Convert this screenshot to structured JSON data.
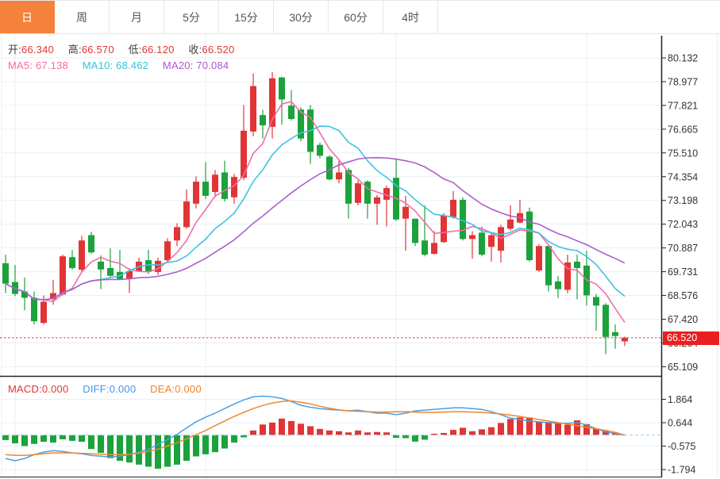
{
  "toolbar": {
    "tabs": [
      {
        "label": "日",
        "active": true
      },
      {
        "label": "周",
        "active": false
      },
      {
        "label": "月",
        "active": false
      },
      {
        "label": "5分",
        "active": false
      },
      {
        "label": "15分",
        "active": false
      },
      {
        "label": "30分",
        "active": false
      },
      {
        "label": "60分",
        "active": false
      },
      {
        "label": "4时",
        "active": false
      }
    ]
  },
  "ohlc": {
    "open_label": "开:",
    "open": "66.340",
    "high_label": "高:",
    "high": "66.570",
    "low_label": "低:",
    "low": "66.120",
    "close_label": "收:",
    "close": "66.520"
  },
  "ma": {
    "ma5_label": "MA5:",
    "ma5": "67.138",
    "ma10_label": "MA10:",
    "ma10": "68.462",
    "ma20_label": "MA20:",
    "ma20": "70.084"
  },
  "macd_row": {
    "macd_label": "MACD:",
    "macd": "0.000",
    "diff_label": "DIFF:",
    "diff": "0.000",
    "dea_label": "DEA:",
    "dea": "0.000"
  },
  "colors": {
    "up": "#e13535",
    "down": "#1ba23a",
    "ma5": "#f06ea6",
    "ma10": "#3fc3e0",
    "ma20": "#ab5fcc",
    "diff_line": "#4d9fe2",
    "dea_line": "#f0872f",
    "accent_tab": "#f5823a",
    "price_line": "#e13535",
    "badge_bg": "#ea1f1f",
    "grid": "#e9eff6",
    "axis": "#222222",
    "zero_dash": "#a9dcf2",
    "tick_text": "#333333"
  },
  "chart_data": {
    "type": "candlestick",
    "title": "",
    "last_price": "66.520",
    "last_price_value": 66.52,
    "main_axis": {
      "tick_labels": [
        "80.132",
        "78.977",
        "77.821",
        "76.665",
        "75.510",
        "74.354",
        "73.198",
        "72.043",
        "70.887",
        "69.731",
        "68.576",
        "67.420",
        "66.264",
        "65.109"
      ],
      "tick_values": [
        80.132,
        78.977,
        77.821,
        76.665,
        75.51,
        74.354,
        73.198,
        72.043,
        70.887,
        69.731,
        68.576,
        67.42,
        66.264,
        65.109
      ],
      "range": [
        65.109,
        80.132
      ]
    },
    "ma_periods": [
      5,
      10,
      20
    ],
    "candles_format": [
      "open",
      "high",
      "low",
      "close"
    ],
    "candles": [
      [
        70.14,
        70.56,
        68.69,
        69.15
      ],
      [
        69.23,
        70.06,
        68.54,
        68.65
      ],
      [
        68.77,
        69.45,
        67.85,
        68.46
      ],
      [
        68.46,
        68.77,
        67.17,
        67.32
      ],
      [
        67.24,
        68.58,
        67.17,
        68.27
      ],
      [
        68.39,
        69.34,
        68.12,
        68.69
      ],
      [
        68.62,
        70.56,
        68.58,
        70.48
      ],
      [
        70.44,
        70.79,
        69.83,
        69.91
      ],
      [
        69.83,
        71.48,
        69.72,
        71.25
      ],
      [
        71.51,
        71.67,
        70.6,
        70.67
      ],
      [
        70.22,
        70.52,
        68.88,
        69.84
      ],
      [
        69.91,
        70.86,
        69.45,
        69.53
      ],
      [
        69.72,
        70.79,
        69.34,
        69.38
      ],
      [
        69.38,
        69.91,
        68.69,
        69.76
      ],
      [
        69.76,
        70.41,
        69.72,
        70.22
      ],
      [
        70.29,
        70.79,
        69.61,
        69.72
      ],
      [
        69.72,
        70.41,
        69.57,
        70.26
      ],
      [
        70.29,
        71.36,
        70.18,
        71.21
      ],
      [
        71.25,
        72.09,
        70.98,
        71.9
      ],
      [
        71.9,
        73.73,
        71.82,
        73.15
      ],
      [
        73.04,
        74.37,
        72.81,
        74.11
      ],
      [
        74.11,
        75.06,
        73.27,
        73.42
      ],
      [
        73.61,
        74.68,
        73.35,
        74.45
      ],
      [
        74.56,
        75.13,
        73.15,
        73.27
      ],
      [
        73.35,
        74.49,
        73.04,
        74.34
      ],
      [
        74.3,
        77.84,
        74.18,
        76.59
      ],
      [
        76.55,
        79.37,
        76.32,
        78.76
      ],
      [
        77.35,
        77.61,
        76.21,
        76.85
      ],
      [
        76.78,
        79.45,
        76.21,
        79.14
      ],
      [
        79.18,
        79.22,
        76.89,
        78.11
      ],
      [
        77.81,
        78.57,
        77.08,
        77.16
      ],
      [
        77.62,
        77.73,
        76.09,
        76.21
      ],
      [
        77.62,
        77.84,
        74.98,
        75.56
      ],
      [
        75.9,
        76.01,
        75.25,
        75.37
      ],
      [
        75.33,
        75.4,
        74.18,
        74.22
      ],
      [
        74.22,
        75.13,
        74.03,
        74.56
      ],
      [
        74.68,
        74.79,
        72.31,
        73.04
      ],
      [
        73.08,
        74.18,
        72.96,
        74.03
      ],
      [
        74.11,
        74.18,
        72.31,
        73.04
      ],
      [
        73.04,
        73.46,
        72.01,
        73.35
      ],
      [
        73.23,
        73.92,
        71.93,
        73.8
      ],
      [
        74.3,
        75.25,
        72.2,
        72.27
      ],
      [
        72.31,
        73.42,
        70.75,
        72.89
      ],
      [
        72.31,
        72.31,
        70.98,
        71.13
      ],
      [
        71.25,
        72.96,
        70.48,
        70.56
      ],
      [
        70.6,
        71.7,
        70.56,
        71.13
      ],
      [
        71.17,
        72.58,
        71.13,
        72.47
      ],
      [
        72.39,
        73.65,
        72.31,
        73.23
      ],
      [
        73.23,
        73.35,
        71.25,
        71.32
      ],
      [
        71.32,
        71.7,
        70.37,
        71.51
      ],
      [
        71.63,
        71.93,
        70.48,
        70.56
      ],
      [
        70.94,
        71.63,
        70.22,
        71.51
      ],
      [
        70.75,
        72.01,
        70.18,
        71.9
      ],
      [
        71.82,
        72.96,
        71.74,
        72.27
      ],
      [
        72.12,
        73.23,
        72.08,
        72.58
      ],
      [
        72.66,
        72.85,
        70.22,
        70.29
      ],
      [
        69.79,
        71.06,
        69.72,
        70.98
      ],
      [
        70.98,
        71.06,
        68.77,
        69.07
      ],
      [
        69.26,
        69.53,
        68.46,
        68.88
      ],
      [
        68.85,
        70.56,
        68.69,
        70.18
      ],
      [
        70.22,
        70.56,
        68.39,
        69.91
      ],
      [
        70.03,
        70.75,
        68.08,
        68.58
      ],
      [
        68.5,
        68.65,
        66.86,
        68.08
      ],
      [
        68.12,
        68.2,
        65.72,
        66.56
      ],
      [
        66.79,
        67.17,
        65.98,
        66.6
      ],
      [
        66.34,
        66.57,
        66.12,
        66.52
      ]
    ],
    "macd": {
      "tick_labels": [
        "1.864",
        "0.644",
        "-0.575",
        "-1.794"
      ],
      "tick_values": [
        1.864,
        0.644,
        -0.575,
        -1.794
      ],
      "hist": [
        -0.26,
        -0.43,
        -0.57,
        -0.46,
        -0.35,
        -0.39,
        -0.22,
        -0.3,
        -0.35,
        -0.73,
        -0.93,
        -1.2,
        -1.34,
        -1.43,
        -1.54,
        -1.65,
        -1.75,
        -1.65,
        -1.54,
        -1.34,
        -1.11,
        -1.0,
        -0.89,
        -0.7,
        -0.39,
        -0.12,
        0.24,
        0.55,
        0.65,
        0.86,
        0.73,
        0.59,
        0.46,
        0.32,
        0.24,
        0.2,
        0.14,
        0.24,
        0.14,
        0.16,
        0.14,
        -0.14,
        -0.16,
        -0.34,
        -0.24,
        0.07,
        0.11,
        0.27,
        0.38,
        0.2,
        0.3,
        0.41,
        0.63,
        0.84,
        0.92,
        0.92,
        0.7,
        0.68,
        0.65,
        0.54,
        0.77,
        0.57,
        0.34,
        0.24,
        0.14,
        0.0
      ],
      "diff": [
        -1.22,
        -1.34,
        -1.22,
        -1.02,
        -0.89,
        -0.81,
        -0.85,
        -0.93,
        -0.97,
        -1.06,
        -1.1,
        -1.14,
        -1.1,
        -1.02,
        -0.89,
        -0.73,
        -0.49,
        -0.24,
        0.04,
        0.37,
        0.69,
        0.93,
        1.14,
        1.38,
        1.62,
        1.83,
        1.99,
        2.03,
        1.99,
        1.91,
        1.75,
        1.55,
        1.45,
        1.38,
        1.33,
        1.3,
        1.26,
        1.3,
        1.22,
        1.14,
        1.14,
        1.06,
        1.14,
        1.26,
        1.3,
        1.34,
        1.38,
        1.42,
        1.42,
        1.38,
        1.34,
        1.22,
        1.06,
        0.89,
        0.81,
        0.73,
        0.69,
        0.65,
        0.61,
        0.61,
        0.65,
        0.53,
        0.33,
        0.16,
        0.08,
        0.0
      ],
      "dea": [
        -1.02,
        -1.06,
        -1.06,
        -1.02,
        -0.97,
        -0.93,
        -0.93,
        -0.93,
        -0.95,
        -0.97,
        -1.0,
        -1.02,
        -1.02,
        -1.0,
        -0.95,
        -0.85,
        -0.73,
        -0.57,
        -0.4,
        -0.2,
        0.02,
        0.24,
        0.49,
        0.73,
        0.97,
        1.18,
        1.38,
        1.54,
        1.67,
        1.75,
        1.78,
        1.71,
        1.62,
        1.5,
        1.4,
        1.32,
        1.26,
        1.24,
        1.22,
        1.2,
        1.2,
        1.22,
        1.22,
        1.2,
        1.18,
        1.18,
        1.2,
        1.22,
        1.22,
        1.2,
        1.18,
        1.14,
        1.1,
        1.04,
        0.97,
        0.89,
        0.81,
        0.73,
        0.65,
        0.57,
        0.49,
        0.41,
        0.33,
        0.24,
        0.14,
        0.0
      ]
    }
  }
}
